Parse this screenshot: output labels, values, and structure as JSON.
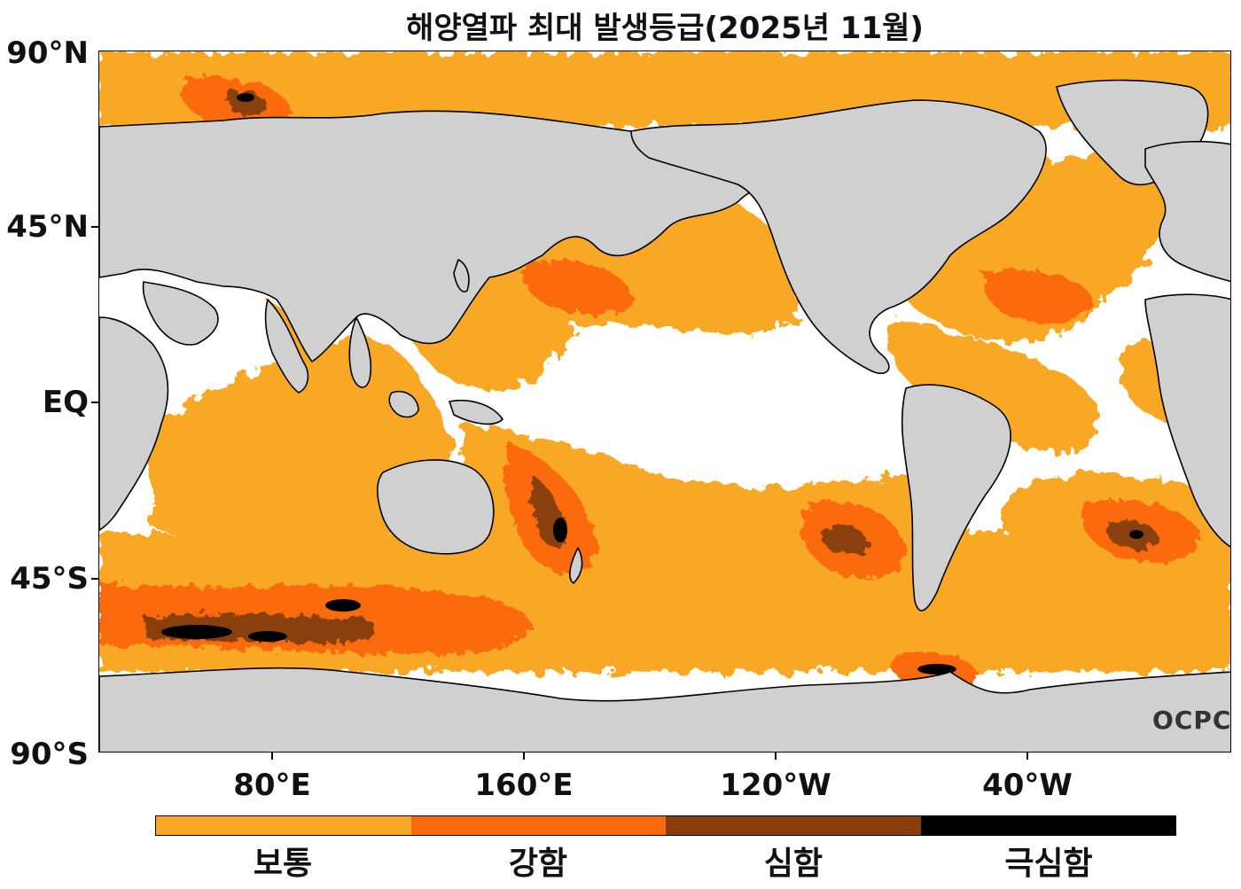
{
  "title": "해양열파 최대 발생등급(2025년 11월)",
  "lat_labels": [
    "90°N",
    "45°N",
    "EQ",
    "45°S",
    "90°S"
  ],
  "lon_labels": [
    "80°E",
    "160°E",
    "120°W",
    "40°W"
  ],
  "legend": {
    "items": [
      {
        "label": "보통",
        "color": "#f9a825"
      },
      {
        "label": "강함",
        "color": "#fb6a0a"
      },
      {
        "label": "심함",
        "color": "#8a3f0a"
      },
      {
        "label": "극심함",
        "color": "#000000"
      }
    ]
  },
  "colors": {
    "land": "#d0d0d0",
    "ocean": "#ffffff",
    "coast": "#000000"
  },
  "logo": "OCPC"
}
